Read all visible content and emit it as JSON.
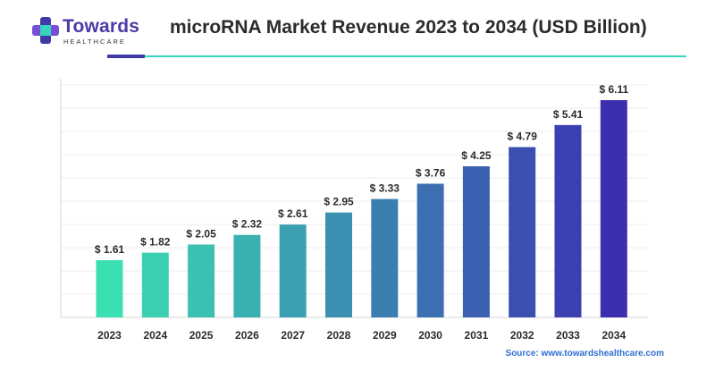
{
  "header": {
    "brand": "Towards",
    "brand_sub": "HEALTHCARE",
    "title": "microRNA Market Revenue 2023 to 2034 (USD Billion)"
  },
  "source": "Source: www.towardshealthcare.com",
  "colors": {
    "accent": "#3f3aa8",
    "accent_line": "#38d5bd",
    "bar_start": "#3be0b2",
    "bar_end": "#3b2fb0",
    "source_text": "#2f6fd0"
  },
  "chart_data": {
    "type": "bar",
    "categories": [
      "2023",
      "2024",
      "2025",
      "2026",
      "2027",
      "2028",
      "2029",
      "2030",
      "2031",
      "2032",
      "2033",
      "2034"
    ],
    "values": [
      1.61,
      1.82,
      2.05,
      2.32,
      2.61,
      2.95,
      3.33,
      3.76,
      4.25,
      4.79,
      5.41,
      6.11
    ],
    "data_labels": [
      "$ 1.61",
      "$ 1.82",
      "$ 2.05",
      "$ 2.32",
      "$ 2.61",
      "$ 2.95",
      "$ 3.33",
      "$ 3.76",
      "$ 4.25",
      "$ 4.79",
      "$ 5.41",
      "$ 6.11"
    ],
    "title": "microRNA Market Revenue 2023 to 2034 (USD Billion)",
    "xlabel": "",
    "ylabel": "",
    "ylim": [
      0,
      6.11
    ],
    "grid": true,
    "legend": "none"
  }
}
